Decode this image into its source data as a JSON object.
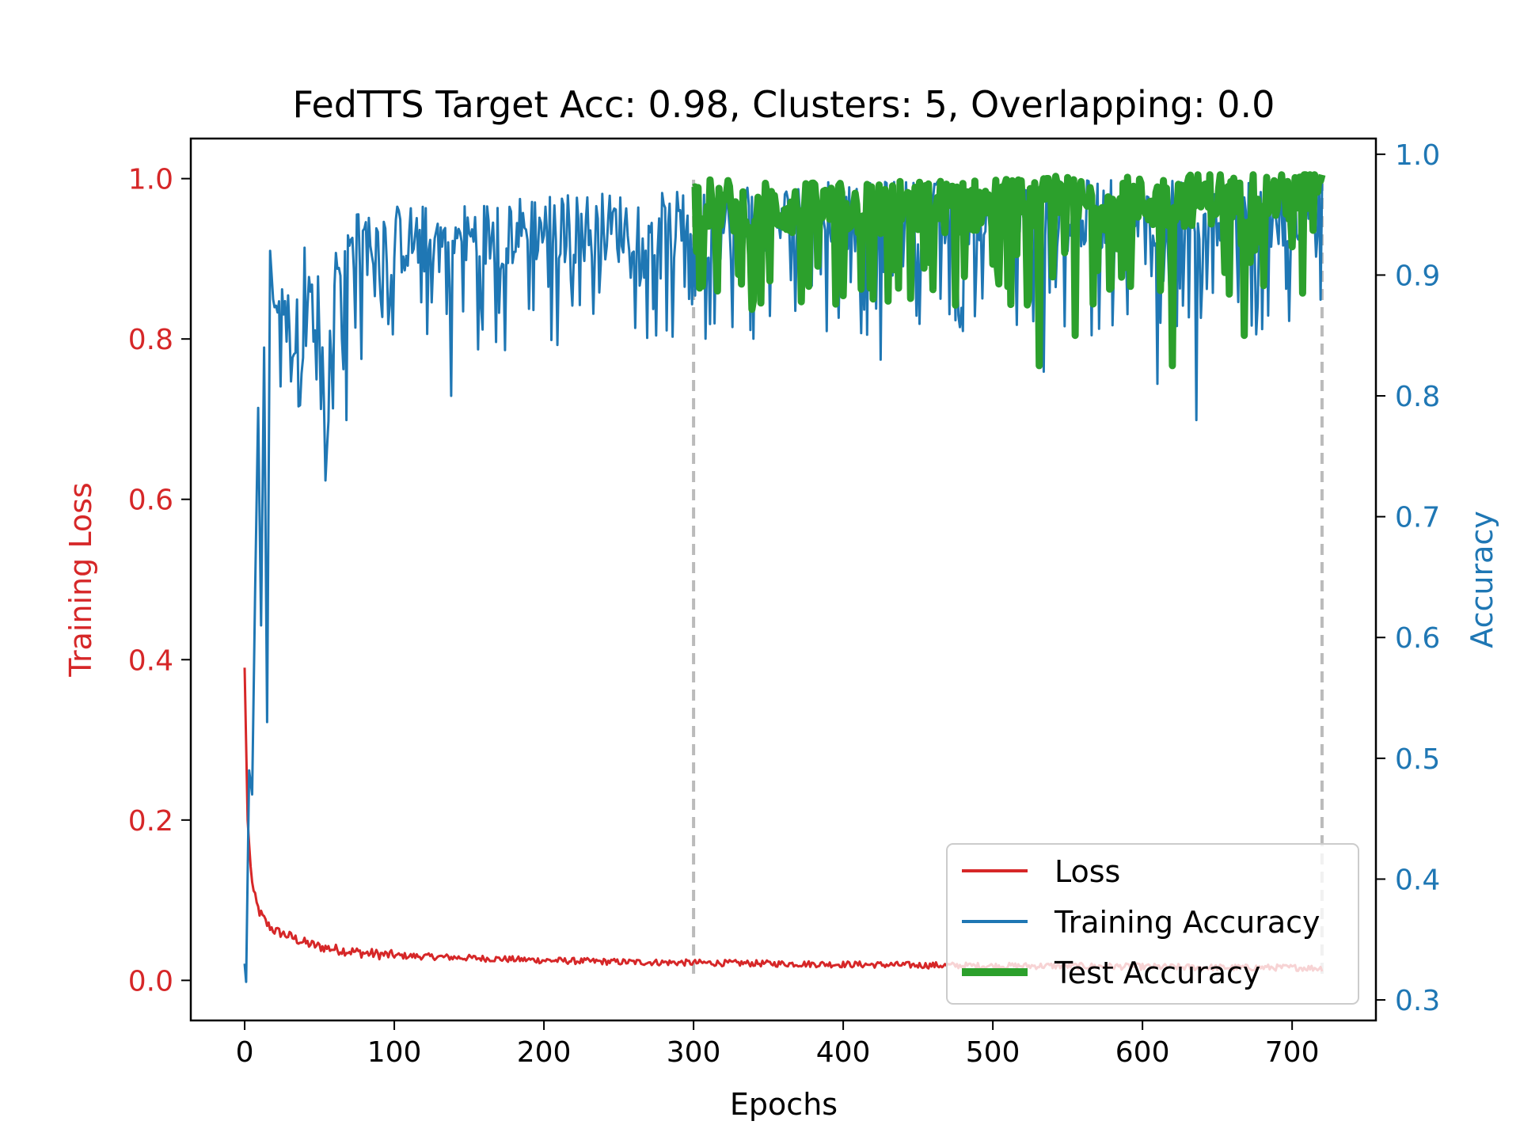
{
  "chart_data": {
    "type": "line",
    "title": "FedTTS Target Acc: 0.98, Clusters: 5, Overlapping: 0.0",
    "xlabel": "Epochs",
    "ylabel_left": "Training Loss",
    "ylabel_right": "Accuracy",
    "xlim": [
      -36,
      756
    ],
    "ylim_left": [
      -0.05,
      1.05
    ],
    "ylim_right": [
      0.283,
      1.013
    ],
    "x_ticks": [
      "0",
      "100",
      "200",
      "300",
      "400",
      "500",
      "600",
      "700"
    ],
    "y_left_ticks": [
      "0.0",
      "0.2",
      "0.4",
      "0.6",
      "0.8",
      "1.0"
    ],
    "y_right_ticks": [
      "0.3",
      "0.4",
      "0.5",
      "0.6",
      "0.7",
      "0.8",
      "0.9",
      "1.0"
    ],
    "vlines": [
      300,
      720
    ],
    "grid": false,
    "legend_position": "lower-right",
    "colors": {
      "loss": "#d62728",
      "train": "#1f77b4",
      "test": "#2ca02c",
      "vline": "#bbbbbb",
      "left_axis": "#d62728",
      "right_axis": "#1f77b4"
    },
    "series": [
      {
        "name": "Loss",
        "axis": "left",
        "x": [
          0,
          2,
          4,
          6,
          8,
          10,
          15,
          20,
          30,
          40,
          50,
          60,
          80,
          100,
          150,
          200,
          250,
          300,
          350,
          400,
          450,
          500,
          550,
          600,
          650,
          700,
          720
        ],
        "y": [
          0.39,
          0.2,
          0.14,
          0.11,
          0.095,
          0.085,
          0.07,
          0.062,
          0.055,
          0.047,
          0.042,
          0.039,
          0.034,
          0.031,
          0.028,
          0.025,
          0.023,
          0.022,
          0.021,
          0.02,
          0.019,
          0.018,
          0.018,
          0.017,
          0.016,
          0.016,
          0.015
        ],
        "noise": 0.004
      },
      {
        "name": "Training Accuracy",
        "axis": "right",
        "x": [
          0,
          1,
          3,
          5,
          7,
          9,
          11,
          13,
          15,
          17,
          19,
          22,
          25,
          30,
          35,
          40,
          45,
          50,
          54,
          60,
          70,
          80,
          100,
          140,
          200,
          250,
          300,
          350,
          400,
          450,
          500,
          550,
          600,
          650,
          700,
          720
        ],
        "y": [
          0.33,
          0.315,
          0.49,
          0.47,
          0.64,
          0.79,
          0.61,
          0.84,
          0.53,
          0.92,
          0.88,
          0.86,
          0.88,
          0.84,
          0.86,
          0.9,
          0.86,
          0.88,
          0.74,
          0.9,
          0.91,
          0.92,
          0.92,
          0.92,
          0.93,
          0.93,
          0.93,
          0.935,
          0.94,
          0.94,
          0.94,
          0.94,
          0.94,
          0.94,
          0.94,
          0.95
        ],
        "min": 0.72,
        "max": 0.983,
        "spikes": [
          [
            54,
            0.73
          ],
          [
            68,
            0.78
          ],
          [
            138,
            0.8
          ],
          [
            275,
            0.85
          ],
          [
            425,
            0.83
          ],
          [
            534,
            0.82
          ],
          [
            610,
            0.81
          ],
          [
            636,
            0.78
          ]
        ]
      },
      {
        "name": "Test Accuracy",
        "axis": "right",
        "x": [
          300,
          350,
          400,
          450,
          500,
          550,
          600,
          650,
          700,
          720
        ],
        "y": [
          0.955,
          0.95,
          0.95,
          0.952,
          0.953,
          0.955,
          0.955,
          0.96,
          0.96,
          0.983
        ],
        "min": 0.81,
        "max": 0.983,
        "spikes": [
          [
            531,
            0.825
          ],
          [
            555,
            0.85
          ],
          [
            620,
            0.825
          ],
          [
            668,
            0.85
          ],
          [
            707,
            0.885
          ]
        ]
      }
    ]
  }
}
